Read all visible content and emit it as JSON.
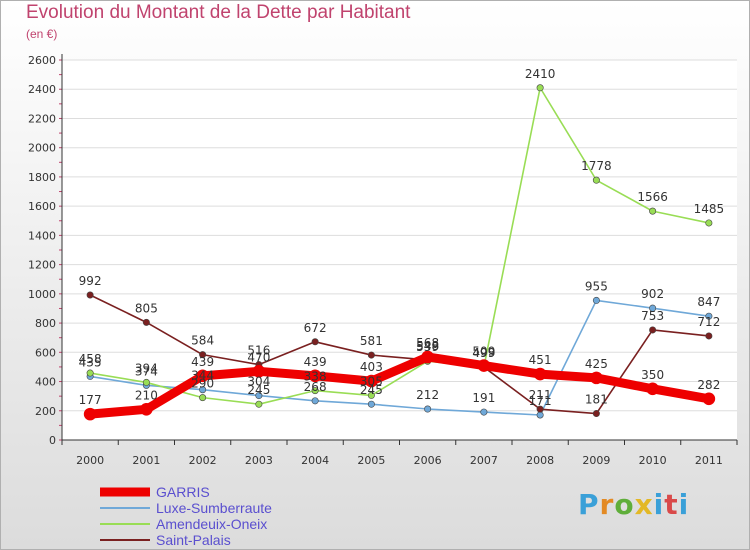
{
  "title": "Evolution du Montant de la Dette par Habitant",
  "subtitle": "(en €)",
  "logo": {
    "text": "Proxiti",
    "colors": [
      "#3aa0d8",
      "#e38a24",
      "#5fae3a",
      "#e3b826",
      "#3aa0d8",
      "#d94a4a",
      "#3aa0d8"
    ]
  },
  "chart_data": {
    "type": "line",
    "x": [
      "2000",
      "2001",
      "2002",
      "2003",
      "2004",
      "2005",
      "2006",
      "2007",
      "2008",
      "2009",
      "2010",
      "2011"
    ],
    "ylim": [
      0,
      2600
    ],
    "yticks": [
      "0",
      "200",
      "400",
      "600",
      "800",
      "1000",
      "1200",
      "1400",
      "1600",
      "1800",
      "2000",
      "2200",
      "2400",
      "2600"
    ],
    "grid": "horizontal",
    "legend": "bottom-left",
    "series": [
      {
        "name": "GARRIS",
        "color": "#ee0000",
        "values": [
          177,
          210,
          439,
          470,
          439,
          403,
          568,
          509,
          451,
          425,
          350,
          282
        ],
        "labels": [
          "177",
          "210",
          "439",
          "470",
          "439",
          "403",
          "568",
          "509",
          "451",
          "425",
          "350",
          "282"
        ]
      },
      {
        "name": "Luxe-Sumberraute",
        "color": "#6fa8d8",
        "values": [
          435,
          374,
          344,
          304,
          268,
          245,
          212,
          191,
          171,
          955,
          902,
          847
        ],
        "labels": [
          "435",
          "374",
          "344",
          "304",
          "268",
          "245",
          "212",
          "191",
          "171",
          "955",
          "902",
          "847"
        ]
      },
      {
        "name": "Amendeuix-Oneix",
        "color": "#99dd55",
        "values": [
          458,
          394,
          290,
          245,
          338,
          305,
          539,
          499,
          2410,
          1778,
          1566,
          1485
        ],
        "labels": [
          "458",
          "394",
          "290",
          "245",
          "338",
          "305",
          "539",
          "499",
          "2410",
          "1778",
          "1566",
          "1485"
        ]
      },
      {
        "name": "Saint-Palais",
        "color": "#7a2020",
        "values": [
          992,
          805,
          584,
          516,
          672,
          581,
          548,
          499,
          211,
          181,
          753,
          712
        ],
        "labels": [
          "992",
          "805",
          "584",
          "516",
          "672",
          "581",
          "548",
          "499",
          "211",
          "181",
          "753",
          "712"
        ]
      }
    ]
  }
}
